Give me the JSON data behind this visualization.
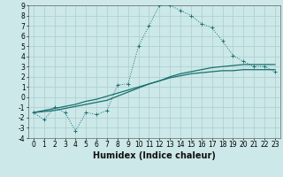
{
  "xlabel": "Humidex (Indice chaleur)",
  "xlim": [
    -0.5,
    23.5
  ],
  "ylim": [
    -4,
    9
  ],
  "xticks": [
    0,
    1,
    2,
    3,
    4,
    5,
    6,
    7,
    8,
    9,
    10,
    11,
    12,
    13,
    14,
    15,
    16,
    17,
    18,
    19,
    20,
    21,
    22,
    23
  ],
  "yticks": [
    -4,
    -3,
    -2,
    -1,
    0,
    1,
    2,
    3,
    4,
    5,
    6,
    7,
    8,
    9
  ],
  "bg_color": "#cce8e8",
  "grid_color": "#aacece",
  "line_color": "#1a7070",
  "line1_x": [
    0,
    1,
    2,
    3,
    4,
    5,
    6,
    7,
    8,
    9,
    10,
    11,
    12,
    13,
    14,
    15,
    16,
    17,
    18,
    19,
    20,
    21,
    22,
    23
  ],
  "line1_y": [
    -1.5,
    -2.2,
    -1.0,
    -1.5,
    -3.3,
    -1.5,
    -1.7,
    -1.3,
    1.2,
    1.3,
    5.0,
    7.0,
    9.0,
    9.0,
    8.5,
    8.0,
    7.2,
    6.8,
    5.5,
    4.1,
    3.5,
    3.0,
    3.0,
    2.5
  ],
  "line2_x": [
    0,
    1,
    2,
    3,
    4,
    5,
    6,
    7,
    8,
    9,
    10,
    11,
    12,
    13,
    14,
    15,
    16,
    17,
    18,
    19,
    20,
    21,
    22,
    23
  ],
  "line2_y": [
    -1.5,
    -1.4,
    -1.3,
    -1.1,
    -0.9,
    -0.7,
    -0.5,
    -0.3,
    0.1,
    0.5,
    0.9,
    1.3,
    1.6,
    2.0,
    2.3,
    2.5,
    2.7,
    2.9,
    3.0,
    3.1,
    3.2,
    3.2,
    3.2,
    3.2
  ],
  "line3_x": [
    0,
    1,
    2,
    3,
    4,
    5,
    6,
    7,
    8,
    9,
    10,
    11,
    12,
    13,
    14,
    15,
    16,
    17,
    18,
    19,
    20,
    21,
    22,
    23
  ],
  "line3_y": [
    -1.5,
    -1.3,
    -1.1,
    -0.9,
    -0.7,
    -0.4,
    -0.2,
    0.1,
    0.4,
    0.7,
    1.0,
    1.3,
    1.6,
    1.9,
    2.1,
    2.3,
    2.4,
    2.5,
    2.6,
    2.6,
    2.7,
    2.7,
    2.7,
    2.7
  ],
  "font_size_label": 7,
  "font_size_tick": 5.5
}
